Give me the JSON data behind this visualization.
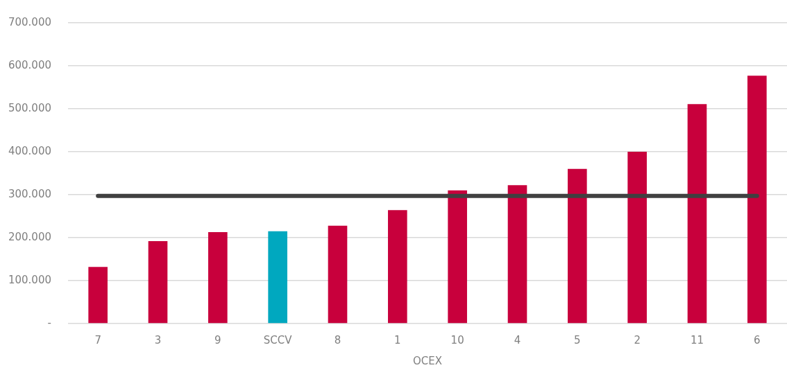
{
  "chart_data": {
    "type": "bar",
    "xlabel": "OCEX",
    "categories": [
      "7",
      "3",
      "9",
      "SCCV",
      "8",
      "1",
      "10",
      "4",
      "5",
      "2",
      "11",
      "6"
    ],
    "values": [
      132000,
      192000,
      213000,
      215000,
      228000,
      264000,
      310000,
      322000,
      360000,
      400000,
      511000,
      577000
    ],
    "colors": [
      "#c8003c",
      "#c8003c",
      "#c8003c",
      "#00a8bf",
      "#c8003c",
      "#c8003c",
      "#c8003c",
      "#c8003c",
      "#c8003c",
      "#c8003c",
      "#c8003c",
      "#c8003c"
    ],
    "ylim": [
      0,
      700000
    ],
    "yticks": [
      {
        "value": 0,
        "label": "-"
      },
      {
        "value": 100000,
        "label": "100.000"
      },
      {
        "value": 200000,
        "label": "200.000"
      },
      {
        "value": 300000,
        "label": "300.000"
      },
      {
        "value": 400000,
        "label": "400.000"
      },
      {
        "value": 500000,
        "label": "500.000"
      },
      {
        "value": 600000,
        "label": "600.000"
      },
      {
        "value": 700000,
        "label": "700.000"
      }
    ],
    "grid": "y",
    "ref_lines": [
      {
        "axis": "y",
        "value": 297000,
        "color": "#404040"
      }
    ]
  }
}
